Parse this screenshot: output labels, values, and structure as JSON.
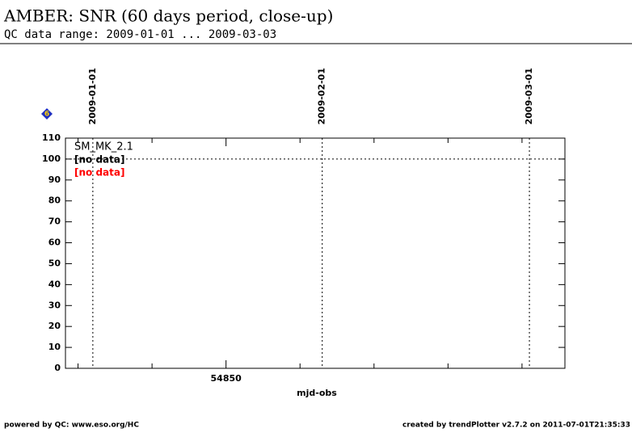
{
  "header": {
    "title": "AMBER: SNR (60 days period, close-up)",
    "subtitle": "QC data range: 2009-01-01 ... 2009-03-03"
  },
  "chart_data": {
    "type": "line",
    "badge": "6",
    "x_label": "mjd-obs",
    "xlim": [
      54828.3,
      54895.8
    ],
    "xticks": [
      54850
    ],
    "xminor_ticks": [
      54830,
      54840,
      54860,
      54870,
      54880,
      54890
    ],
    "ylim": [
      0,
      110
    ],
    "yticks": [
      0,
      10,
      20,
      30,
      40,
      50,
      60,
      70,
      80,
      90,
      100,
      110
    ],
    "reference_line": 100,
    "date_markers": [
      {
        "value": 54832,
        "label": "2009-01-01"
      },
      {
        "value": 54863,
        "label": "2009-02-01"
      },
      {
        "value": 54891,
        "label": "2009-03-01"
      }
    ],
    "legend_title": "SM_MK_2.1",
    "series": [
      {
        "name": "[no data]",
        "color": "#000000",
        "values": []
      },
      {
        "name": "[no data]",
        "color": "#ff0000",
        "values": []
      }
    ]
  },
  "footer": {
    "left": "powered by QC: www.eso.org/HC",
    "right": "created by trendPlotter v2.7.2 on 2011-07-01T21:35:33"
  }
}
